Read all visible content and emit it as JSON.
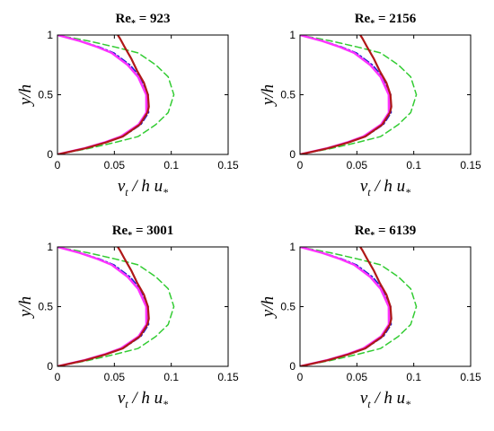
{
  "chart_data": {
    "type": "line",
    "xlabel": "νt / h u*",
    "ylabel": "y/h",
    "xlim": [
      0,
      0.15
    ],
    "ylim": [
      0,
      1
    ],
    "xticks": [
      "0",
      "0.05",
      "0.1",
      "0.15"
    ],
    "yticks": [
      "0",
      "0.5",
      "1"
    ],
    "grid": false,
    "series_style": [
      {
        "key": "red",
        "color": "#b01818",
        "dash": "solid",
        "width": 2.2
      },
      {
        "key": "magenta",
        "color": "#ff33ff",
        "dash": "solid",
        "width": 2.4
      },
      {
        "key": "purple",
        "color": "#9b30c8",
        "dash": "solid",
        "width": 1.8
      },
      {
        "key": "blue",
        "color": "#1f1fd0",
        "dash": "dashdot",
        "width": 1.6
      },
      {
        "key": "green",
        "color": "#33cc33",
        "dash": "dashed",
        "width": 1.5
      }
    ],
    "panels": [
      {
        "title_main": "Re",
        "title_sub": "*",
        "title_value": " = 923",
        "series": [
          {
            "key": "green",
            "x": [
              0,
              0.0273,
              0.0504,
              0.0709,
              0.0864,
              0.0973,
              0.1023,
              0.0973,
              0.0864,
              0.0709,
              0.0504,
              0.0273,
              0
            ],
            "y": [
              0,
              0.05,
              0.1,
              0.15,
              0.25,
              0.35,
              0.5,
              0.65,
              0.75,
              0.85,
              0.9,
              0.95,
              1
            ]
          },
          {
            "key": "blue",
            "x": [
              0,
              0.0237,
              0.0424,
              0.0576,
              0.0733,
              0.0801,
              0.0798,
              0.0727,
              0.0637,
              0.0496,
              0.0365,
              0.0204,
              0
            ],
            "y": [
              0,
              0.05,
              0.1,
              0.15,
              0.25,
              0.35,
              0.5,
              0.65,
              0.75,
              0.85,
              0.9,
              0.95,
              1
            ]
          },
          {
            "key": "purple",
            "x": [
              0,
              0.0233,
              0.0415,
              0.0563,
              0.0718,
              0.0786,
              0.0785,
              0.0712,
              0.062,
              0.048,
              0.0352,
              0.0196,
              0
            ],
            "y": [
              0,
              0.05,
              0.1,
              0.15,
              0.25,
              0.35,
              0.5,
              0.65,
              0.75,
              0.85,
              0.9,
              0.95,
              1
            ]
          },
          {
            "key": "magenta",
            "x": [
              0,
              0.023,
              0.0411,
              0.0557,
              0.0712,
              0.0781,
              0.078,
              0.0708,
              0.0616,
              0.0476,
              0.0349,
              0.0194,
              0
            ],
            "y": [
              0,
              0.05,
              0.1,
              0.15,
              0.25,
              0.35,
              0.5,
              0.65,
              0.75,
              0.85,
              0.9,
              0.95,
              1
            ]
          },
          {
            "key": "red",
            "x": [
              0,
              0.024,
              0.0425,
              0.0573,
              0.0723,
              0.079,
              0.0803,
              0.0795,
              0.076,
              0.07,
              0.065,
              0.059,
              0.055,
              0.053
            ],
            "y": [
              0,
              0.05,
              0.1,
              0.15,
              0.25,
              0.35,
              0.4,
              0.5,
              0.6,
              0.7,
              0.8,
              0.9,
              0.97,
              1
            ]
          }
        ]
      },
      {
        "title_main": "Re",
        "title_sub": "*",
        "title_value": " = 2156",
        "series": [
          {
            "key": "green",
            "x": [
              0,
              0.0273,
              0.0504,
              0.0709,
              0.0864,
              0.0973,
              0.1023,
              0.0973,
              0.0864,
              0.0709,
              0.0504,
              0.0273,
              0
            ],
            "y": [
              0,
              0.05,
              0.1,
              0.15,
              0.25,
              0.35,
              0.5,
              0.65,
              0.75,
              0.85,
              0.9,
              0.95,
              1
            ]
          },
          {
            "key": "blue",
            "x": [
              0,
              0.0237,
              0.0424,
              0.0576,
              0.0733,
              0.0801,
              0.0798,
              0.0727,
              0.0637,
              0.0496,
              0.0365,
              0.0204,
              0
            ],
            "y": [
              0,
              0.05,
              0.1,
              0.15,
              0.25,
              0.35,
              0.5,
              0.65,
              0.75,
              0.85,
              0.9,
              0.95,
              1
            ]
          },
          {
            "key": "purple",
            "x": [
              0,
              0.0233,
              0.0415,
              0.0563,
              0.0718,
              0.0786,
              0.0785,
              0.0712,
              0.062,
              0.048,
              0.0352,
              0.0196,
              0
            ],
            "y": [
              0,
              0.05,
              0.1,
              0.15,
              0.25,
              0.35,
              0.5,
              0.65,
              0.75,
              0.85,
              0.9,
              0.95,
              1
            ]
          },
          {
            "key": "magenta",
            "x": [
              0,
              0.023,
              0.0411,
              0.0557,
              0.0712,
              0.0781,
              0.078,
              0.0708,
              0.0616,
              0.0476,
              0.0349,
              0.0194,
              0
            ],
            "y": [
              0,
              0.05,
              0.1,
              0.15,
              0.25,
              0.35,
              0.5,
              0.65,
              0.75,
              0.85,
              0.9,
              0.95,
              1
            ]
          },
          {
            "key": "red",
            "x": [
              0,
              0.024,
              0.0425,
              0.0573,
              0.0723,
              0.079,
              0.0803,
              0.0795,
              0.076,
              0.07,
              0.065,
              0.059,
              0.055,
              0.053
            ],
            "y": [
              0,
              0.05,
              0.1,
              0.15,
              0.25,
              0.35,
              0.4,
              0.5,
              0.6,
              0.7,
              0.8,
              0.9,
              0.97,
              1
            ]
          }
        ]
      },
      {
        "title_main": "Re",
        "title_sub": "*",
        "title_value": " = 3001",
        "series": [
          {
            "key": "green",
            "x": [
              0,
              0.0273,
              0.0504,
              0.0709,
              0.0864,
              0.0973,
              0.1023,
              0.0973,
              0.0864,
              0.0709,
              0.0504,
              0.0273,
              0
            ],
            "y": [
              0,
              0.05,
              0.1,
              0.15,
              0.25,
              0.35,
              0.5,
              0.65,
              0.75,
              0.85,
              0.9,
              0.95,
              1
            ]
          },
          {
            "key": "blue",
            "x": [
              0,
              0.0237,
              0.0424,
              0.0576,
              0.0733,
              0.0801,
              0.0798,
              0.0727,
              0.0637,
              0.0496,
              0.0365,
              0.0204,
              0
            ],
            "y": [
              0,
              0.05,
              0.1,
              0.15,
              0.25,
              0.35,
              0.5,
              0.65,
              0.75,
              0.85,
              0.9,
              0.95,
              1
            ]
          },
          {
            "key": "purple",
            "x": [
              0,
              0.0233,
              0.0415,
              0.0563,
              0.0718,
              0.0786,
              0.0785,
              0.0712,
              0.062,
              0.048,
              0.0352,
              0.0196,
              0
            ],
            "y": [
              0,
              0.05,
              0.1,
              0.15,
              0.25,
              0.35,
              0.5,
              0.65,
              0.75,
              0.85,
              0.9,
              0.95,
              1
            ]
          },
          {
            "key": "magenta",
            "x": [
              0,
              0.023,
              0.0411,
              0.0557,
              0.0712,
              0.0781,
              0.078,
              0.0708,
              0.0616,
              0.0476,
              0.0349,
              0.0194,
              0
            ],
            "y": [
              0,
              0.05,
              0.1,
              0.15,
              0.25,
              0.35,
              0.5,
              0.65,
              0.75,
              0.85,
              0.9,
              0.95,
              1
            ]
          },
          {
            "key": "red",
            "x": [
              0,
              0.024,
              0.0425,
              0.0573,
              0.0723,
              0.079,
              0.0803,
              0.0795,
              0.076,
              0.07,
              0.065,
              0.059,
              0.055,
              0.053
            ],
            "y": [
              0,
              0.05,
              0.1,
              0.15,
              0.25,
              0.35,
              0.4,
              0.5,
              0.6,
              0.7,
              0.8,
              0.9,
              0.97,
              1
            ]
          }
        ]
      },
      {
        "title_main": "Re",
        "title_sub": "*",
        "title_value": " = 6139",
        "series": [
          {
            "key": "green",
            "x": [
              0,
              0.0273,
              0.0504,
              0.0709,
              0.0864,
              0.0973,
              0.1023,
              0.0973,
              0.0864,
              0.0709,
              0.0504,
              0.0273,
              0
            ],
            "y": [
              0,
              0.05,
              0.1,
              0.15,
              0.25,
              0.35,
              0.5,
              0.65,
              0.75,
              0.85,
              0.9,
              0.95,
              1
            ]
          },
          {
            "key": "blue",
            "x": [
              0,
              0.0237,
              0.0424,
              0.0576,
              0.0733,
              0.0801,
              0.0798,
              0.0727,
              0.0637,
              0.0496,
              0.0365,
              0.0204,
              0
            ],
            "y": [
              0,
              0.05,
              0.1,
              0.15,
              0.25,
              0.35,
              0.5,
              0.65,
              0.75,
              0.85,
              0.9,
              0.95,
              1
            ]
          },
          {
            "key": "purple",
            "x": [
              0,
              0.0233,
              0.0415,
              0.0563,
              0.0718,
              0.0786,
              0.0785,
              0.0712,
              0.062,
              0.048,
              0.0352,
              0.0196,
              0
            ],
            "y": [
              0,
              0.05,
              0.1,
              0.15,
              0.25,
              0.35,
              0.5,
              0.65,
              0.75,
              0.85,
              0.9,
              0.95,
              1
            ]
          },
          {
            "key": "magenta",
            "x": [
              0,
              0.023,
              0.0411,
              0.0557,
              0.0712,
              0.0781,
              0.078,
              0.0708,
              0.0616,
              0.0476,
              0.0349,
              0.0194,
              0
            ],
            "y": [
              0,
              0.05,
              0.1,
              0.15,
              0.25,
              0.35,
              0.5,
              0.65,
              0.75,
              0.85,
              0.9,
              0.95,
              1
            ]
          },
          {
            "key": "red",
            "x": [
              0,
              0.024,
              0.0425,
              0.0573,
              0.0723,
              0.079,
              0.0803,
              0.0795,
              0.076,
              0.07,
              0.065,
              0.059,
              0.055,
              0.053
            ],
            "y": [
              0,
              0.05,
              0.1,
              0.15,
              0.25,
              0.35,
              0.4,
              0.5,
              0.6,
              0.7,
              0.8,
              0.9,
              0.97,
              1
            ]
          }
        ]
      }
    ]
  },
  "axis_label_parts": {
    "x_nu": "ν",
    "x_t": "t",
    "x_mid": " / h u",
    "x_star": "*",
    "y": "y/h"
  }
}
